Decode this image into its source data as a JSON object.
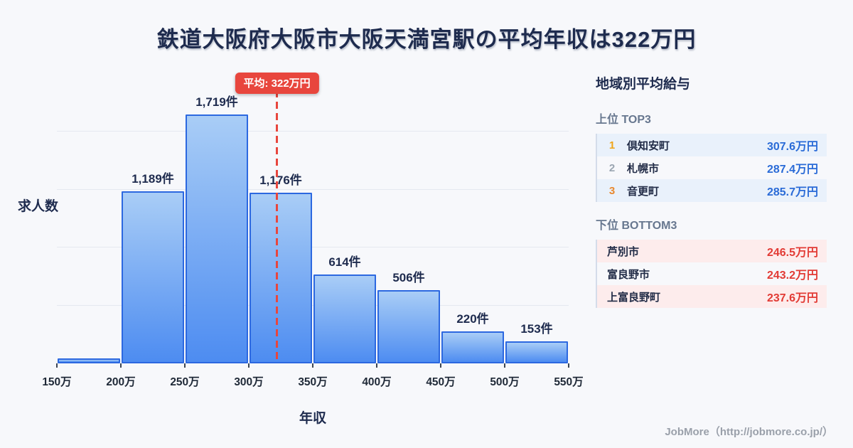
{
  "page": {
    "title": "鉄道大阪府大阪市大阪天満宮駅の平均年収は322万円"
  },
  "chart_data": {
    "type": "bar",
    "title": "鉄道大阪府大阪市大阪天満宮駅の平均年収は322万円",
    "xlabel": "年収",
    "ylabel": "求人数",
    "x_tick_labels": [
      "150万",
      "200万",
      "250万",
      "300万",
      "350万",
      "400万",
      "450万",
      "500万",
      "550万"
    ],
    "xlim": [
      150,
      550
    ],
    "ylim": [
      0,
      1870
    ],
    "grid": "horizontal",
    "gridline_values": [
      400,
      800,
      1200,
      1600
    ],
    "bins": [
      {
        "range": "150万-200万",
        "value": 34,
        "label": ""
      },
      {
        "range": "200万-250万",
        "value": 1189,
        "label": "1,189件"
      },
      {
        "range": "250万-300万",
        "value": 1719,
        "label": "1,719件"
      },
      {
        "range": "300万-350万",
        "value": 1176,
        "label": "1,176件"
      },
      {
        "range": "350万-400万",
        "value": 614,
        "label": "614件"
      },
      {
        "range": "400万-450万",
        "value": 506,
        "label": "506件"
      },
      {
        "range": "450万-500万",
        "value": 220,
        "label": "220件"
      },
      {
        "range": "500万-550万",
        "value": 153,
        "label": "153件"
      }
    ],
    "average": {
      "value": 322,
      "label": "平均: 322万円"
    }
  },
  "sidebar": {
    "title": "地域別平均給与",
    "top3": {
      "header": "上位 TOP3",
      "rows": [
        {
          "rank": "1",
          "rank_color": "#f0a519",
          "name": "倶知安町",
          "value": "307.6万円"
        },
        {
          "rank": "2",
          "rank_color": "#9aa5b1",
          "name": "札幌市",
          "value": "287.4万円"
        },
        {
          "rank": "3",
          "rank_color": "#e8882e",
          "name": "音更町",
          "value": "285.7万円"
        }
      ],
      "value_color": "#2a6bd7",
      "stripe_color": "#e9f1fb"
    },
    "bottom3": {
      "header": "下位 BOTTOM3",
      "rows": [
        {
          "name": "芦別市",
          "value": "246.5万円"
        },
        {
          "name": "富良野市",
          "value": "243.2万円"
        },
        {
          "name": "上富良野町",
          "value": "237.6万円"
        }
      ],
      "value_color": "#e23b35",
      "stripe_color": "#fdecec"
    }
  },
  "footer": {
    "credit": "JobMore（http://jobmore.co.jp/）"
  },
  "colors": {
    "bg": "#f7f8fb",
    "navy": "#1e2b4e",
    "slate": "#67778f",
    "bar_top": "#a9cdf6",
    "bar_bottom": "#4d8cf1",
    "bar_border": "#2c68e0",
    "accent_red": "#e8463d",
    "grid": "#e5e9f0",
    "table_border": "#d4dcea",
    "footer_gray": "#9aa0aa"
  }
}
